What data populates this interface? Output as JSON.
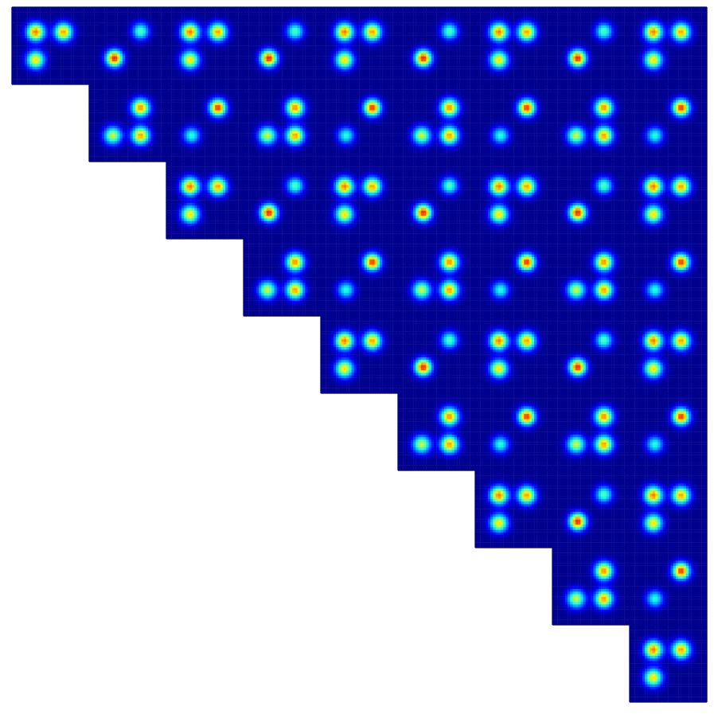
{
  "chart_data": {
    "type": "heatmap_grid",
    "tick_labels": false,
    "rows": 9,
    "cols": 9,
    "xlim": [
      0,
      1
    ],
    "ylim": [
      0,
      1
    ],
    "zlim": [
      0,
      1
    ],
    "panels": [
      {
        "row": 0,
        "col": 0,
        "blobs": [
          {
            "x": 0.31,
            "y": 0.68,
            "sigma": 0.08,
            "peak": 0.82
          },
          {
            "x": 0.67,
            "y": 0.68,
            "sigma": 0.08,
            "peak": 0.78
          },
          {
            "x": 0.31,
            "y": 0.32,
            "sigma": 0.08,
            "peak": 0.7
          }
        ]
      },
      {
        "row": 0,
        "col": 1,
        "blobs": [
          {
            "x": 0.33,
            "y": 0.34,
            "sigma": 0.075,
            "peak": 0.92
          },
          {
            "x": 0.67,
            "y": 0.69,
            "sigma": 0.075,
            "peak": 0.5
          }
        ]
      },
      {
        "row": 0,
        "col": 2,
        "blobs": [
          {
            "x": 0.31,
            "y": 0.68,
            "sigma": 0.08,
            "peak": 0.82
          },
          {
            "x": 0.67,
            "y": 0.68,
            "sigma": 0.08,
            "peak": 0.78
          },
          {
            "x": 0.31,
            "y": 0.32,
            "sigma": 0.08,
            "peak": 0.7
          }
        ]
      },
      {
        "row": 0,
        "col": 3,
        "blobs": [
          {
            "x": 0.33,
            "y": 0.34,
            "sigma": 0.075,
            "peak": 0.92
          },
          {
            "x": 0.67,
            "y": 0.69,
            "sigma": 0.075,
            "peak": 0.5
          }
        ]
      },
      {
        "row": 0,
        "col": 4,
        "blobs": [
          {
            "x": 0.31,
            "y": 0.68,
            "sigma": 0.08,
            "peak": 0.82
          },
          {
            "x": 0.67,
            "y": 0.68,
            "sigma": 0.08,
            "peak": 0.78
          },
          {
            "x": 0.31,
            "y": 0.32,
            "sigma": 0.08,
            "peak": 0.7
          }
        ]
      },
      {
        "row": 0,
        "col": 5,
        "blobs": [
          {
            "x": 0.33,
            "y": 0.34,
            "sigma": 0.075,
            "peak": 0.92
          },
          {
            "x": 0.67,
            "y": 0.69,
            "sigma": 0.075,
            "peak": 0.5
          }
        ]
      },
      {
        "row": 0,
        "col": 6,
        "blobs": [
          {
            "x": 0.31,
            "y": 0.68,
            "sigma": 0.08,
            "peak": 0.82
          },
          {
            "x": 0.67,
            "y": 0.68,
            "sigma": 0.08,
            "peak": 0.78
          },
          {
            "x": 0.31,
            "y": 0.32,
            "sigma": 0.08,
            "peak": 0.7
          }
        ]
      },
      {
        "row": 0,
        "col": 7,
        "blobs": [
          {
            "x": 0.33,
            "y": 0.34,
            "sigma": 0.075,
            "peak": 0.92
          },
          {
            "x": 0.67,
            "y": 0.69,
            "sigma": 0.075,
            "peak": 0.5
          }
        ]
      },
      {
        "row": 0,
        "col": 8,
        "blobs": [
          {
            "x": 0.31,
            "y": 0.68,
            "sigma": 0.08,
            "peak": 0.82
          },
          {
            "x": 0.67,
            "y": 0.68,
            "sigma": 0.08,
            "peak": 0.78
          },
          {
            "x": 0.31,
            "y": 0.32,
            "sigma": 0.08,
            "peak": 0.7
          }
        ]
      },
      {
        "row": 1,
        "col": 1,
        "blobs": [
          {
            "x": 0.67,
            "y": 0.7,
            "sigma": 0.08,
            "peak": 0.8
          },
          {
            "x": 0.67,
            "y": 0.34,
            "sigma": 0.08,
            "peak": 0.78
          },
          {
            "x": 0.31,
            "y": 0.34,
            "sigma": 0.08,
            "peak": 0.62
          }
        ]
      },
      {
        "row": 1,
        "col": 2,
        "blobs": [
          {
            "x": 0.67,
            "y": 0.7,
            "sigma": 0.075,
            "peak": 0.9
          },
          {
            "x": 0.33,
            "y": 0.34,
            "sigma": 0.075,
            "peak": 0.45
          }
        ]
      },
      {
        "row": 1,
        "col": 3,
        "blobs": [
          {
            "x": 0.67,
            "y": 0.7,
            "sigma": 0.08,
            "peak": 0.8
          },
          {
            "x": 0.67,
            "y": 0.34,
            "sigma": 0.08,
            "peak": 0.78
          },
          {
            "x": 0.31,
            "y": 0.34,
            "sigma": 0.08,
            "peak": 0.62
          }
        ]
      },
      {
        "row": 1,
        "col": 4,
        "blobs": [
          {
            "x": 0.67,
            "y": 0.7,
            "sigma": 0.075,
            "peak": 0.9
          },
          {
            "x": 0.33,
            "y": 0.34,
            "sigma": 0.075,
            "peak": 0.45
          }
        ]
      },
      {
        "row": 1,
        "col": 5,
        "blobs": [
          {
            "x": 0.67,
            "y": 0.7,
            "sigma": 0.08,
            "peak": 0.8
          },
          {
            "x": 0.67,
            "y": 0.34,
            "sigma": 0.08,
            "peak": 0.78
          },
          {
            "x": 0.31,
            "y": 0.34,
            "sigma": 0.08,
            "peak": 0.62
          }
        ]
      },
      {
        "row": 1,
        "col": 6,
        "blobs": [
          {
            "x": 0.67,
            "y": 0.7,
            "sigma": 0.075,
            "peak": 0.9
          },
          {
            "x": 0.33,
            "y": 0.34,
            "sigma": 0.075,
            "peak": 0.45
          }
        ]
      },
      {
        "row": 1,
        "col": 7,
        "blobs": [
          {
            "x": 0.67,
            "y": 0.7,
            "sigma": 0.08,
            "peak": 0.8
          },
          {
            "x": 0.67,
            "y": 0.34,
            "sigma": 0.08,
            "peak": 0.78
          },
          {
            "x": 0.31,
            "y": 0.34,
            "sigma": 0.08,
            "peak": 0.62
          }
        ]
      },
      {
        "row": 1,
        "col": 8,
        "blobs": [
          {
            "x": 0.67,
            "y": 0.7,
            "sigma": 0.075,
            "peak": 0.9
          },
          {
            "x": 0.33,
            "y": 0.34,
            "sigma": 0.075,
            "peak": 0.45
          }
        ]
      },
      {
        "row": 2,
        "col": 2,
        "blobs": [
          {
            "x": 0.31,
            "y": 0.68,
            "sigma": 0.08,
            "peak": 0.82
          },
          {
            "x": 0.67,
            "y": 0.68,
            "sigma": 0.08,
            "peak": 0.78
          },
          {
            "x": 0.31,
            "y": 0.32,
            "sigma": 0.08,
            "peak": 0.7
          }
        ]
      },
      {
        "row": 2,
        "col": 3,
        "blobs": [
          {
            "x": 0.33,
            "y": 0.34,
            "sigma": 0.075,
            "peak": 0.92
          },
          {
            "x": 0.67,
            "y": 0.69,
            "sigma": 0.075,
            "peak": 0.5
          }
        ]
      },
      {
        "row": 2,
        "col": 4,
        "blobs": [
          {
            "x": 0.31,
            "y": 0.68,
            "sigma": 0.08,
            "peak": 0.82
          },
          {
            "x": 0.67,
            "y": 0.68,
            "sigma": 0.08,
            "peak": 0.78
          },
          {
            "x": 0.31,
            "y": 0.32,
            "sigma": 0.08,
            "peak": 0.7
          }
        ]
      },
      {
        "row": 2,
        "col": 5,
        "blobs": [
          {
            "x": 0.33,
            "y": 0.34,
            "sigma": 0.075,
            "peak": 0.92
          },
          {
            "x": 0.67,
            "y": 0.69,
            "sigma": 0.075,
            "peak": 0.5
          }
        ]
      },
      {
        "row": 2,
        "col": 6,
        "blobs": [
          {
            "x": 0.31,
            "y": 0.68,
            "sigma": 0.08,
            "peak": 0.82
          },
          {
            "x": 0.67,
            "y": 0.68,
            "sigma": 0.08,
            "peak": 0.78
          },
          {
            "x": 0.31,
            "y": 0.32,
            "sigma": 0.08,
            "peak": 0.7
          }
        ]
      },
      {
        "row": 2,
        "col": 7,
        "blobs": [
          {
            "x": 0.33,
            "y": 0.34,
            "sigma": 0.075,
            "peak": 0.92
          },
          {
            "x": 0.67,
            "y": 0.69,
            "sigma": 0.075,
            "peak": 0.5
          }
        ]
      },
      {
        "row": 2,
        "col": 8,
        "blobs": [
          {
            "x": 0.31,
            "y": 0.68,
            "sigma": 0.08,
            "peak": 0.82
          },
          {
            "x": 0.67,
            "y": 0.68,
            "sigma": 0.08,
            "peak": 0.78
          },
          {
            "x": 0.31,
            "y": 0.32,
            "sigma": 0.08,
            "peak": 0.7
          }
        ]
      },
      {
        "row": 3,
        "col": 3,
        "blobs": [
          {
            "x": 0.67,
            "y": 0.7,
            "sigma": 0.08,
            "peak": 0.8
          },
          {
            "x": 0.67,
            "y": 0.34,
            "sigma": 0.08,
            "peak": 0.78
          },
          {
            "x": 0.31,
            "y": 0.34,
            "sigma": 0.08,
            "peak": 0.62
          }
        ]
      },
      {
        "row": 3,
        "col": 4,
        "blobs": [
          {
            "x": 0.67,
            "y": 0.7,
            "sigma": 0.075,
            "peak": 0.9
          },
          {
            "x": 0.33,
            "y": 0.34,
            "sigma": 0.075,
            "peak": 0.45
          }
        ]
      },
      {
        "row": 3,
        "col": 5,
        "blobs": [
          {
            "x": 0.67,
            "y": 0.7,
            "sigma": 0.08,
            "peak": 0.8
          },
          {
            "x": 0.67,
            "y": 0.34,
            "sigma": 0.08,
            "peak": 0.78
          },
          {
            "x": 0.31,
            "y": 0.34,
            "sigma": 0.08,
            "peak": 0.62
          }
        ]
      },
      {
        "row": 3,
        "col": 6,
        "blobs": [
          {
            "x": 0.67,
            "y": 0.7,
            "sigma": 0.075,
            "peak": 0.9
          },
          {
            "x": 0.33,
            "y": 0.34,
            "sigma": 0.075,
            "peak": 0.45
          }
        ]
      },
      {
        "row": 3,
        "col": 7,
        "blobs": [
          {
            "x": 0.67,
            "y": 0.7,
            "sigma": 0.08,
            "peak": 0.8
          },
          {
            "x": 0.67,
            "y": 0.34,
            "sigma": 0.08,
            "peak": 0.78
          },
          {
            "x": 0.31,
            "y": 0.34,
            "sigma": 0.08,
            "peak": 0.62
          }
        ]
      },
      {
        "row": 3,
        "col": 8,
        "blobs": [
          {
            "x": 0.67,
            "y": 0.7,
            "sigma": 0.075,
            "peak": 0.9
          },
          {
            "x": 0.33,
            "y": 0.34,
            "sigma": 0.075,
            "peak": 0.45
          }
        ]
      },
      {
        "row": 4,
        "col": 4,
        "blobs": [
          {
            "x": 0.31,
            "y": 0.68,
            "sigma": 0.08,
            "peak": 0.82
          },
          {
            "x": 0.67,
            "y": 0.68,
            "sigma": 0.08,
            "peak": 0.78
          },
          {
            "x": 0.31,
            "y": 0.32,
            "sigma": 0.08,
            "peak": 0.7
          }
        ]
      },
      {
        "row": 4,
        "col": 5,
        "blobs": [
          {
            "x": 0.33,
            "y": 0.34,
            "sigma": 0.075,
            "peak": 0.92
          },
          {
            "x": 0.67,
            "y": 0.69,
            "sigma": 0.075,
            "peak": 0.5
          }
        ]
      },
      {
        "row": 4,
        "col": 6,
        "blobs": [
          {
            "x": 0.31,
            "y": 0.68,
            "sigma": 0.08,
            "peak": 0.82
          },
          {
            "x": 0.67,
            "y": 0.68,
            "sigma": 0.08,
            "peak": 0.78
          },
          {
            "x": 0.31,
            "y": 0.32,
            "sigma": 0.08,
            "peak": 0.7
          }
        ]
      },
      {
        "row": 4,
        "col": 7,
        "blobs": [
          {
            "x": 0.33,
            "y": 0.34,
            "sigma": 0.075,
            "peak": 0.92
          },
          {
            "x": 0.67,
            "y": 0.69,
            "sigma": 0.075,
            "peak": 0.5
          }
        ]
      },
      {
        "row": 4,
        "col": 8,
        "blobs": [
          {
            "x": 0.31,
            "y": 0.68,
            "sigma": 0.08,
            "peak": 0.82
          },
          {
            "x": 0.67,
            "y": 0.68,
            "sigma": 0.08,
            "peak": 0.78
          },
          {
            "x": 0.31,
            "y": 0.32,
            "sigma": 0.08,
            "peak": 0.7
          }
        ]
      },
      {
        "row": 5,
        "col": 5,
        "blobs": [
          {
            "x": 0.67,
            "y": 0.7,
            "sigma": 0.08,
            "peak": 0.8
          },
          {
            "x": 0.67,
            "y": 0.34,
            "sigma": 0.08,
            "peak": 0.78
          },
          {
            "x": 0.31,
            "y": 0.34,
            "sigma": 0.08,
            "peak": 0.62
          }
        ]
      },
      {
        "row": 5,
        "col": 6,
        "blobs": [
          {
            "x": 0.67,
            "y": 0.7,
            "sigma": 0.075,
            "peak": 0.9
          },
          {
            "x": 0.33,
            "y": 0.34,
            "sigma": 0.075,
            "peak": 0.45
          }
        ]
      },
      {
        "row": 5,
        "col": 7,
        "blobs": [
          {
            "x": 0.67,
            "y": 0.7,
            "sigma": 0.08,
            "peak": 0.8
          },
          {
            "x": 0.67,
            "y": 0.34,
            "sigma": 0.08,
            "peak": 0.78
          },
          {
            "x": 0.31,
            "y": 0.34,
            "sigma": 0.08,
            "peak": 0.62
          }
        ]
      },
      {
        "row": 5,
        "col": 8,
        "blobs": [
          {
            "x": 0.67,
            "y": 0.7,
            "sigma": 0.075,
            "peak": 0.9
          },
          {
            "x": 0.33,
            "y": 0.34,
            "sigma": 0.075,
            "peak": 0.45
          }
        ]
      },
      {
        "row": 6,
        "col": 6,
        "blobs": [
          {
            "x": 0.31,
            "y": 0.68,
            "sigma": 0.08,
            "peak": 0.82
          },
          {
            "x": 0.67,
            "y": 0.68,
            "sigma": 0.08,
            "peak": 0.78
          },
          {
            "x": 0.31,
            "y": 0.32,
            "sigma": 0.08,
            "peak": 0.7
          }
        ]
      },
      {
        "row": 6,
        "col": 7,
        "blobs": [
          {
            "x": 0.33,
            "y": 0.34,
            "sigma": 0.075,
            "peak": 0.92
          },
          {
            "x": 0.67,
            "y": 0.69,
            "sigma": 0.075,
            "peak": 0.5
          }
        ]
      },
      {
        "row": 6,
        "col": 8,
        "blobs": [
          {
            "x": 0.31,
            "y": 0.68,
            "sigma": 0.08,
            "peak": 0.82
          },
          {
            "x": 0.67,
            "y": 0.68,
            "sigma": 0.08,
            "peak": 0.78
          },
          {
            "x": 0.31,
            "y": 0.32,
            "sigma": 0.08,
            "peak": 0.7
          }
        ]
      },
      {
        "row": 7,
        "col": 7,
        "blobs": [
          {
            "x": 0.67,
            "y": 0.7,
            "sigma": 0.08,
            "peak": 0.8
          },
          {
            "x": 0.67,
            "y": 0.34,
            "sigma": 0.08,
            "peak": 0.78
          },
          {
            "x": 0.31,
            "y": 0.34,
            "sigma": 0.08,
            "peak": 0.62
          }
        ]
      },
      {
        "row": 7,
        "col": 8,
        "blobs": [
          {
            "x": 0.67,
            "y": 0.7,
            "sigma": 0.075,
            "peak": 0.9
          },
          {
            "x": 0.33,
            "y": 0.34,
            "sigma": 0.075,
            "peak": 0.45
          }
        ]
      },
      {
        "row": 8,
        "col": 8,
        "blobs": [
          {
            "x": 0.31,
            "y": 0.68,
            "sigma": 0.08,
            "peak": 0.82
          },
          {
            "x": 0.67,
            "y": 0.68,
            "sigma": 0.08,
            "peak": 0.78
          },
          {
            "x": 0.31,
            "y": 0.32,
            "sigma": 0.08,
            "peak": 0.7
          }
        ]
      }
    ]
  }
}
